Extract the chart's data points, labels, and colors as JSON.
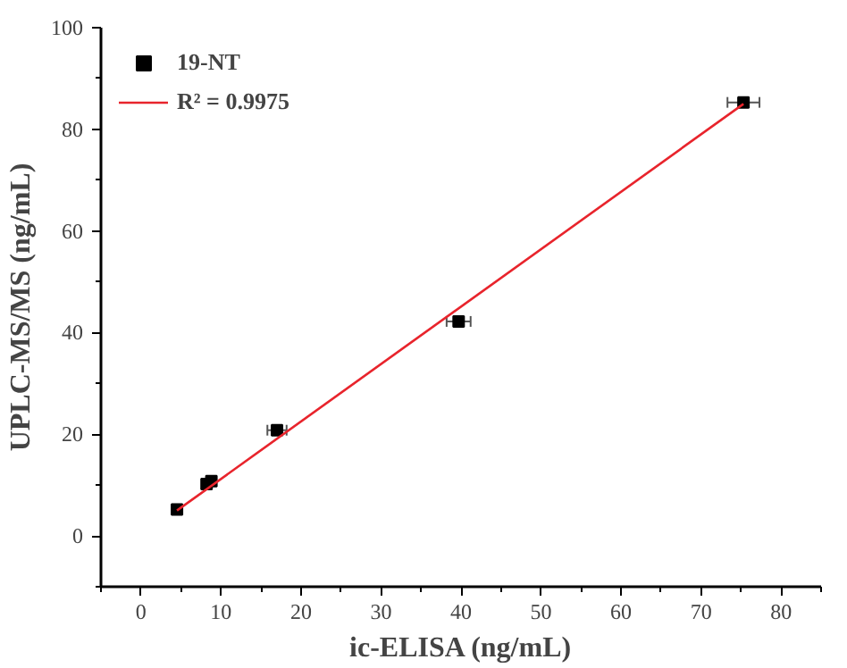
{
  "chart_data": {
    "type": "scatter",
    "xlabel": "ic-ELISA (ng/mL)",
    "ylabel": "UPLC-MS/MS (ng/mL)",
    "xlim": [
      -5,
      85
    ],
    "ylim": [
      -10,
      100
    ],
    "xticks": [
      0,
      10,
      20,
      30,
      40,
      50,
      60,
      70,
      80
    ],
    "yticks": [
      0,
      20,
      40,
      60,
      80,
      100
    ],
    "legend": "top left",
    "grid": false,
    "series": [
      {
        "name": "19-NT",
        "marker": "square",
        "color": "#000000",
        "x": [
          4.5,
          8.2,
          8.8,
          17,
          39.7,
          75.3
        ],
        "values": [
          5.2,
          10.2,
          10.8,
          20.8,
          42.2,
          85.3
        ],
        "xerrors": [
          null,
          null,
          null,
          1.2,
          1.5,
          2.0
        ]
      },
      {
        "name": "R² = 0.9975",
        "type": "line",
        "color": "#e8242c",
        "x": [
          4.5,
          75.3
        ],
        "values": [
          5.0,
          85.0
        ]
      }
    ]
  }
}
